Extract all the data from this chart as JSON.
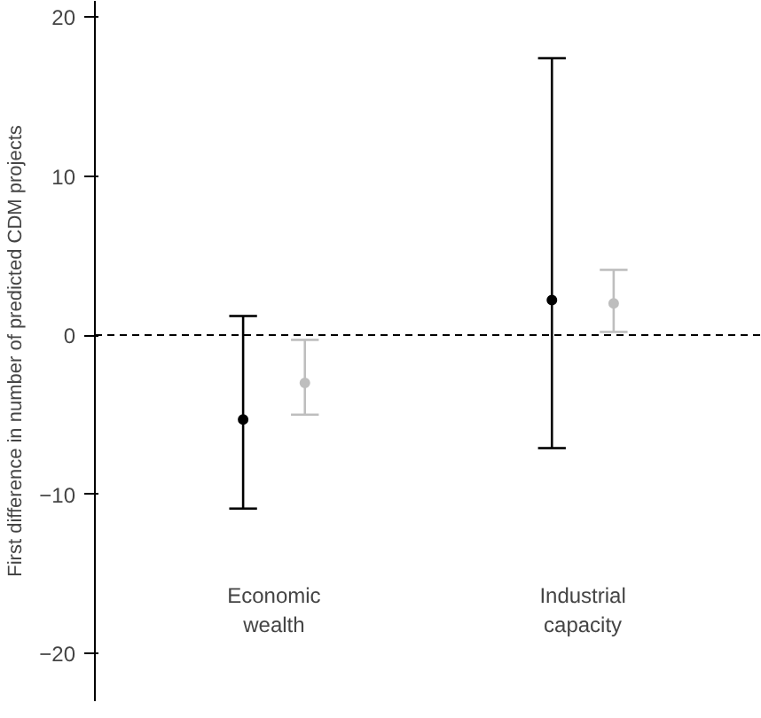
{
  "chart_data": {
    "type": "scatter",
    "ylabel": "First difference in number of predicted CDM projects",
    "categories": [
      "Economic wealth",
      "Industrial capacity"
    ],
    "series": [
      {
        "color": "#000000",
        "values": [
          -5.3,
          2.2
        ],
        "errors": [
          [
            -10.9,
            1.2
          ],
          [
            -7.1,
            17.4
          ]
        ]
      },
      {
        "color": "#bebebe",
        "values": [
          -3.0,
          2.0
        ],
        "errors": [
          [
            -5.0,
            -0.3
          ],
          [
            0.2,
            4.1
          ]
        ]
      }
    ],
    "ylim": [
      -23,
      21
    ],
    "yticks": [
      -20,
      -10,
      0,
      10,
      20
    ],
    "grid": false,
    "marker": "circle",
    "ref_lines": [
      {
        "axis": "y",
        "value": 0,
        "line_style": "dashed",
        "color": "#000000"
      }
    ]
  }
}
